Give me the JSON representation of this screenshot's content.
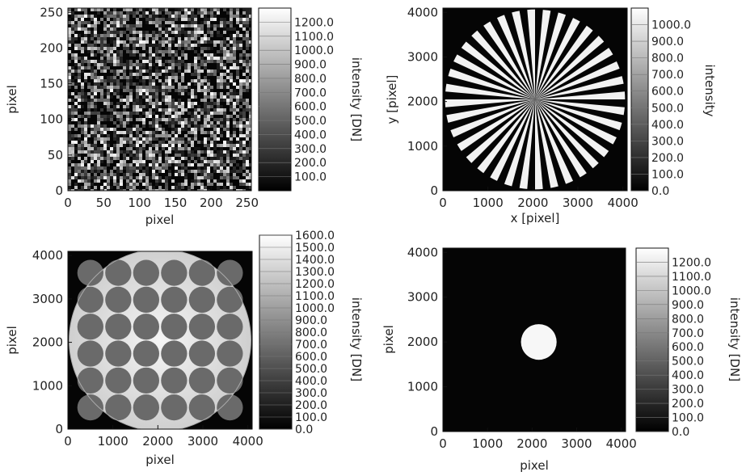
{
  "chart_data": [
    {
      "type": "heatmap",
      "content": "random speckle noise",
      "xlabel": "pixel",
      "ylabel": "pixel",
      "x_ticks": [
        "0",
        "50",
        "100",
        "150",
        "200",
        "250"
      ],
      "y_ticks": [
        "0",
        "50",
        "100",
        "150",
        "200",
        "250"
      ],
      "xlim": [
        0,
        256
      ],
      "ylim": [
        0,
        256
      ],
      "colorbar": {
        "label": "intensity [DN]",
        "ticks": [
          "100.0",
          "200.0",
          "300.0",
          "400.0",
          "500.0",
          "600.0",
          "700.0",
          "800.0",
          "900.0",
          "1000.0",
          "1100.0",
          "1200.0"
        ],
        "range": [
          0,
          1300
        ],
        "colormap": "grayscale"
      }
    },
    {
      "type": "heatmap",
      "content": "Siemens star",
      "xlabel": "x [pixel]",
      "ylabel": "y [pixel]",
      "x_ticks": [
        "0",
        "1000",
        "2000",
        "3000",
        "4000"
      ],
      "y_ticks": [
        "0",
        "1000",
        "2000",
        "3000",
        "4000"
      ],
      "xlim": [
        0,
        4096
      ],
      "ylim": [
        0,
        4096
      ],
      "star": {
        "center": [
          2048,
          2048
        ],
        "radius": 2000,
        "spokes": 36
      },
      "colorbar": {
        "label": "intensity",
        "ticks": [
          "0.0",
          "100.0",
          "200.0",
          "300.0",
          "400.0",
          "500.0",
          "600.0",
          "700.0",
          "800.0",
          "900.0",
          "1000.0"
        ],
        "range": [
          0,
          1100
        ],
        "colormap": "grayscale"
      }
    },
    {
      "type": "heatmap",
      "content": "flat field disk with grid of dark circular spots",
      "xlabel": "pixel",
      "ylabel": "pixel",
      "x_ticks": [
        "0",
        "1000",
        "2000",
        "3000",
        "4000"
      ],
      "y_ticks": [
        "0",
        "1000",
        "2000",
        "3000",
        "4000"
      ],
      "xlim": [
        0,
        4096
      ],
      "ylim": [
        0,
        4096
      ],
      "disk": {
        "center": [
          2048,
          2048
        ],
        "radius": 2020
      },
      "spots": {
        "rows": 6,
        "cols": 6,
        "spacing": 620,
        "radius": 290,
        "start": [
          500,
          500
        ]
      },
      "colorbar": {
        "label": "intensity [DN]",
        "ticks": [
          "0.0",
          "100.0",
          "200.0",
          "300.0",
          "400.0",
          "500.0",
          "600.0",
          "700.0",
          "800.0",
          "900.0",
          "1000.0",
          "1100.0",
          "1200.0",
          "1300.0",
          "1400.0",
          "1500.0",
          "1600.0"
        ],
        "range": [
          0,
          1600
        ],
        "colormap": "grayscale"
      }
    },
    {
      "type": "heatmap",
      "content": "single bright disk on dark background",
      "xlabel": "pixel",
      "ylabel": "pixel",
      "x_ticks": [
        "0",
        "1000",
        "2000",
        "3000",
        "4000"
      ],
      "y_ticks": [
        "0",
        "1000",
        "2000",
        "3000",
        "4000"
      ],
      "xlim": [
        0,
        4096
      ],
      "ylim": [
        0,
        4096
      ],
      "disk": {
        "center": [
          2150,
          2000
        ],
        "radius": 400
      },
      "colorbar": {
        "label": "intensity [DN]",
        "ticks": [
          "0.0",
          "100.0",
          "200.0",
          "300.0",
          "400.0",
          "500.0",
          "600.0",
          "700.0",
          "800.0",
          "900.0",
          "1000.0",
          "1100.0",
          "1200.0"
        ],
        "range": [
          0,
          1300
        ],
        "colormap": "grayscale"
      }
    }
  ]
}
